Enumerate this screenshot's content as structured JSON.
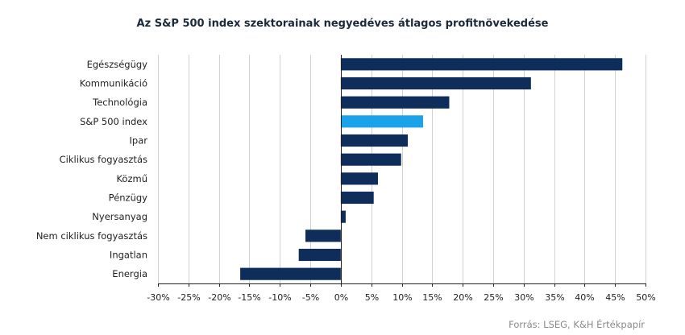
{
  "chart_data": {
    "type": "bar",
    "orientation": "horizontal",
    "title": "Az S&P 500 index szektorainak negyedéves átlagos profitnövekedése",
    "categories": [
      "Egészségügy",
      "Kommunikáció",
      "Technológia",
      "S&P 500 index",
      "Ipar",
      "Ciklikus fogyasztás",
      "Közmű",
      "Pénzügy",
      "Nyersanyag",
      "Nem ciklikus fogyasztás",
      "Ingatlan",
      "Energia"
    ],
    "values": [
      46.2,
      31.2,
      17.8,
      13.5,
      11.0,
      9.9,
      6.1,
      5.4,
      0.8,
      -5.8,
      -6.9,
      -16.5
    ],
    "highlight_category": "S&P 500 index",
    "xlim": [
      -30,
      50
    ],
    "xticks": [
      -30,
      -25,
      -20,
      -15,
      -10,
      -5,
      0,
      5,
      10,
      15,
      20,
      25,
      30,
      35,
      40,
      45,
      50
    ],
    "tick_labels": [
      "-30%",
      "-25%",
      "-20%",
      "-15%",
      "-10%",
      "-5%",
      "0%",
      "5%",
      "10%",
      "15%",
      "20%",
      "25%",
      "30%",
      "35%",
      "40%",
      "45%",
      "50%"
    ],
    "grid": true,
    "legend": "none",
    "colors": {
      "bar": "#0e2d5a",
      "highlight": "#1aa3e8"
    },
    "source": "Forrás: LSEG, K&H Értékpapír"
  }
}
